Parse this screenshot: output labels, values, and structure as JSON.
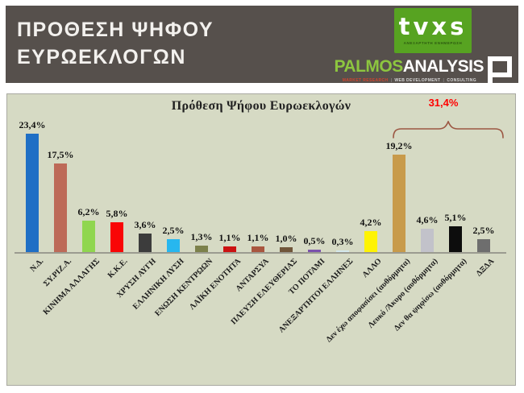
{
  "header": {
    "title_line1": "ΠΡΟΘΕΣΗ ΨΗΦΟΥ",
    "title_line2": "ΕΥΡΩΕΚΛΟΓΩΝ",
    "background_color": "#56504c",
    "tvxs": {
      "logo_text": "tvxs",
      "tagline": "ΑΝΕΞΑΡΤΗΤΗ ΕΝΗΜΕΡΩΣΗ",
      "bg_color": "#57a321"
    },
    "palmos": {
      "name_part1": "PALMOS",
      "name_part2": "ANALYSIS",
      "green": "#8dc63f",
      "tagline_items": [
        "MARKET RESEARCH",
        "WEB DEVELOPMENT",
        "CONSULTING"
      ]
    }
  },
  "chart_data": {
    "type": "bar",
    "title": "Πρόθεση Ψήφου Ευρωεκλογών",
    "xlabel": "",
    "ylabel": "",
    "ylim": [
      0,
      25
    ],
    "grid": false,
    "legend": "none",
    "background": "#d6dac4",
    "categories": [
      "Ν.Δ.",
      "ΣΥ.ΡΙΖ.Α.",
      "ΚΙΝΗΜΑ ΑΛΛΑΓΗΣ",
      "Κ.Κ.Ε.",
      "ΧΡΥΣΗ ΑΥΓΗ",
      "ΕΛΛΗΝΙΚΗ ΛΥΣΗ",
      "ΕΝΩΣΗ ΚΕΝΤΡΩΩΝ",
      "ΛΑΪΚΗ ΕΝΟΤΗΤΑ",
      "ΑΝΤΑΡΣΥΑ",
      "ΠΛΕΥΣΗ ΕΛΕΥΘΕΡΙΑΣ",
      "ΤΟ ΠΟΤΑΜΙ",
      "ΑΝΕΞΑΡΤΗΤΟΙ ΕΛΛΗΝΕΣ",
      "ΑΛΛΟ",
      "Δεν έχω αποφασίσει (αυθόρμητα)",
      "Λευκό /Άκυρο (αυθόρμητα)",
      "Δεν θα ψηφίσω (αυθόρμητα)",
      "ΔΞΔΑ"
    ],
    "values": [
      23.4,
      17.5,
      6.2,
      5.8,
      3.6,
      2.5,
      1.3,
      1.1,
      1.1,
      1.0,
      0.5,
      0.3,
      4.2,
      19.2,
      4.6,
      5.1,
      2.5
    ],
    "value_labels": [
      "23,4%",
      "17,5%",
      "6,2%",
      "5,8%",
      "3,6%",
      "2,5%",
      "1,3%",
      "1,1%",
      "1,1%",
      "1,0%",
      "0,5%",
      "0,3%",
      "4,2%",
      "19,2%",
      "4,6%",
      "5,1%",
      "2,5%"
    ],
    "bar_colors": [
      "#1f6fc5",
      "#bd6a58",
      "#90d64f",
      "#f90606",
      "#3c3c3c",
      "#27b7ef",
      "#7c814b",
      "#cb1212",
      "#a9563f",
      "#70563a",
      "#7b52ad",
      "#d4e8ed",
      "#fef303",
      "#c89b4b",
      "#c2c2ca",
      "#0d0d0d",
      "#6e6e6e"
    ],
    "annotation": {
      "label": "31,4%",
      "color": "#ff0000",
      "brace_color": "#9c5743",
      "covers": [
        "Δεν έχω αποφασίσει (αυθόρμητα)",
        "Λευκό /Άκυρο (αυθόρμητα)",
        "Δεν θα ψηφίσω (αυθόρμητα)",
        "ΔΞΔΑ"
      ]
    }
  }
}
